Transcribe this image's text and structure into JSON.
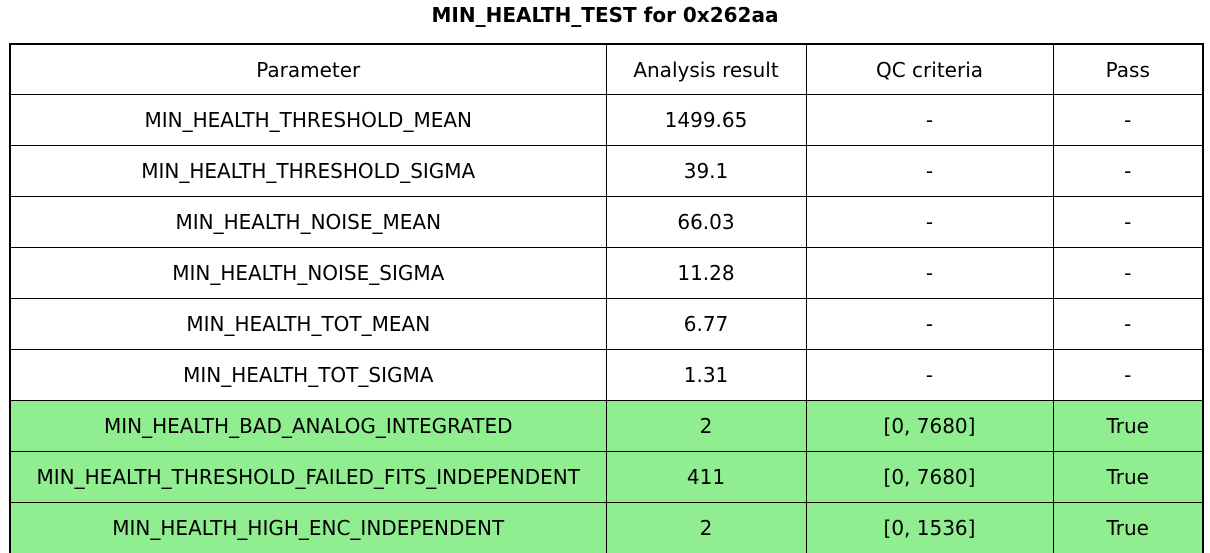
{
  "figure": {
    "title": "MIN_HEALTH_TEST for 0x262aa"
  },
  "colors": {
    "background": "#FFFFFF",
    "border": "#000000",
    "text": "#000000",
    "pass_highlight_green": "#90EE90"
  },
  "table": {
    "headers": [
      "Parameter",
      "Analysis result",
      "QC criteria",
      "Pass"
    ],
    "rows": [
      {
        "parameter": "MIN_HEALTH_THRESHOLD_MEAN",
        "result": "1499.65",
        "qc": "-",
        "pass": "-",
        "highlight": false
      },
      {
        "parameter": "MIN_HEALTH_THRESHOLD_SIGMA",
        "result": "39.1",
        "qc": "-",
        "pass": "-",
        "highlight": false
      },
      {
        "parameter": "MIN_HEALTH_NOISE_MEAN",
        "result": "66.03",
        "qc": "-",
        "pass": "-",
        "highlight": false
      },
      {
        "parameter": "MIN_HEALTH_NOISE_SIGMA",
        "result": "11.28",
        "qc": "-",
        "pass": "-",
        "highlight": false
      },
      {
        "parameter": "MIN_HEALTH_TOT_MEAN",
        "result": "6.77",
        "qc": "-",
        "pass": "-",
        "highlight": false
      },
      {
        "parameter": "MIN_HEALTH_TOT_SIGMA",
        "result": "1.31",
        "qc": "-",
        "pass": "-",
        "highlight": false
      },
      {
        "parameter": "MIN_HEALTH_BAD_ANALOG_INTEGRATED",
        "result": "2",
        "qc": "[0, 7680]",
        "pass": "True",
        "highlight": true
      },
      {
        "parameter": "MIN_HEALTH_THRESHOLD_FAILED_FITS_INDEPENDENT",
        "result": "411",
        "qc": "[0, 7680]",
        "pass": "True",
        "highlight": true
      },
      {
        "parameter": "MIN_HEALTH_HIGH_ENC_INDEPENDENT",
        "result": "2",
        "qc": "[0, 1536]",
        "pass": "True",
        "highlight": true
      }
    ]
  },
  "chart_data": {
    "type": "table",
    "title": "MIN_HEALTH_TEST for 0x262aa",
    "columns": [
      "Parameter",
      "Analysis result",
      "QC criteria",
      "Pass"
    ],
    "rows": [
      [
        "MIN_HEALTH_THRESHOLD_MEAN",
        "1499.65",
        "-",
        "-"
      ],
      [
        "MIN_HEALTH_THRESHOLD_SIGMA",
        "39.1",
        "-",
        "-"
      ],
      [
        "MIN_HEALTH_NOISE_MEAN",
        "66.03",
        "-",
        "-"
      ],
      [
        "MIN_HEALTH_NOISE_SIGMA",
        "11.28",
        "-",
        "-"
      ],
      [
        "MIN_HEALTH_TOT_MEAN",
        "6.77",
        "-",
        "-"
      ],
      [
        "MIN_HEALTH_TOT_SIGMA",
        "1.31",
        "-",
        "-"
      ],
      [
        "MIN_HEALTH_BAD_ANALOG_INTEGRATED",
        "2",
        "[0, 7680]",
        "True"
      ],
      [
        "MIN_HEALTH_THRESHOLD_FAILED_FITS_INDEPENDENT",
        "411",
        "[0, 7680]",
        "True"
      ],
      [
        "MIN_HEALTH_HIGH_ENC_INDEPENDENT",
        "2",
        "[0, 1536]",
        "True"
      ]
    ],
    "highlighted_row_indices": [
      6,
      7,
      8
    ],
    "highlight_color": "#90EE90",
    "layout": {
      "title_position": "top-center",
      "grid": "on",
      "legend": "none"
    }
  }
}
